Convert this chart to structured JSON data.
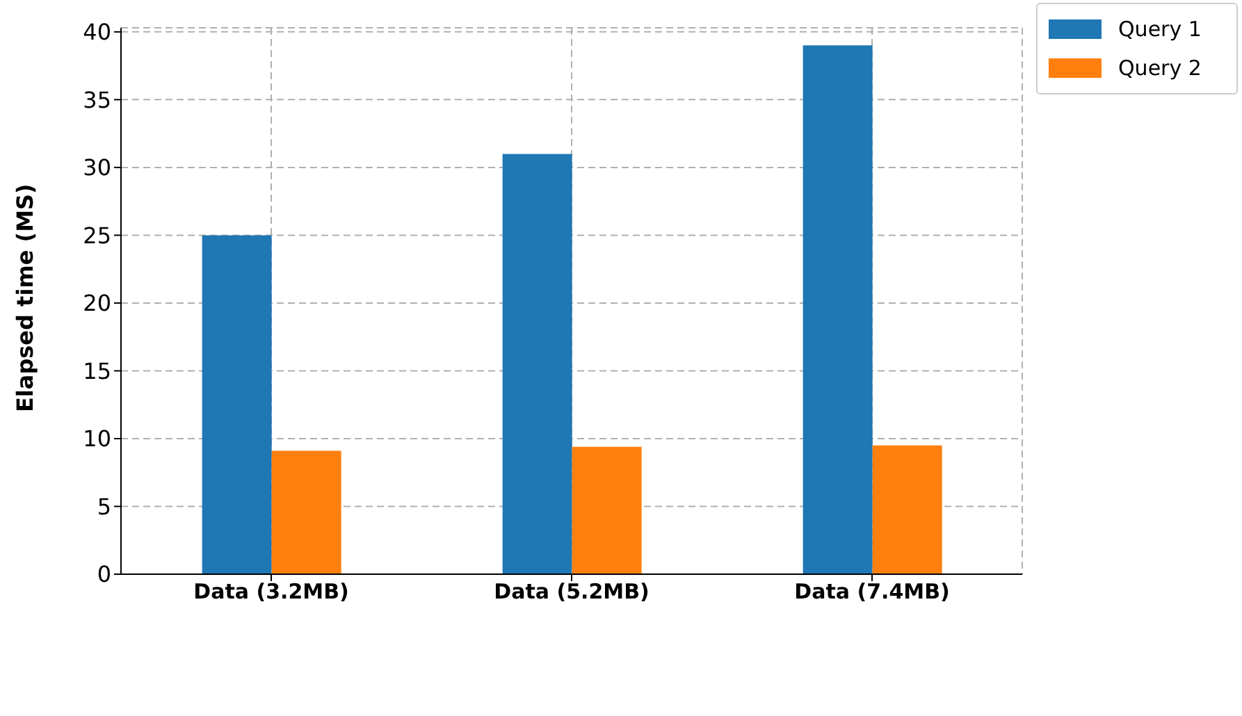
{
  "chart_data": {
    "type": "bar",
    "ylabel": "Elapsed time (MS)",
    "categories": [
      "Data (3.2MB)",
      "Data (5.2MB)",
      "Data (7.4MB)"
    ],
    "series": [
      {
        "name": "Query 1",
        "color": "#1f77b4",
        "values": [
          25,
          31,
          39
        ]
      },
      {
        "name": "Query 2",
        "color": "#ff7f0e",
        "values": [
          9.1,
          9.4,
          9.5
        ]
      }
    ],
    "ylim": [
      0,
      40.3
    ],
    "yticks": [
      0,
      5,
      10,
      15,
      20,
      25,
      30,
      35,
      40
    ],
    "grid": true,
    "legend": "top right"
  }
}
